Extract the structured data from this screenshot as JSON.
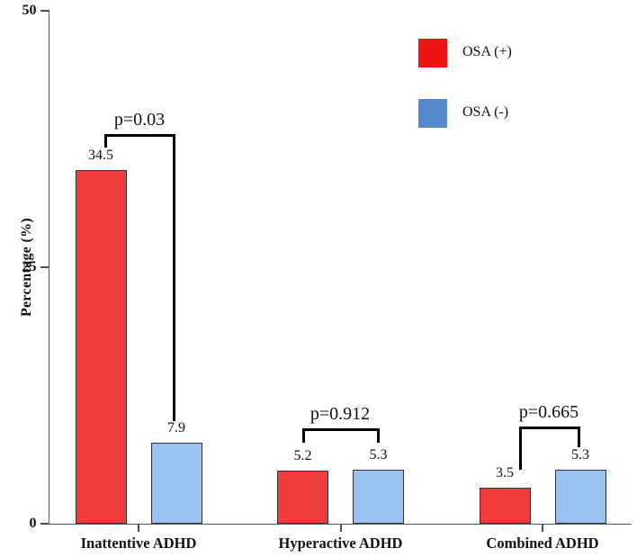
{
  "chart_data": {
    "type": "bar",
    "title": "",
    "ylabel": "Percentage (%)",
    "xlabel": "",
    "ylim": [
      0,
      50
    ],
    "yticks": [
      0,
      25,
      50
    ],
    "categories": [
      "Inattentive ADHD",
      "Hyperactive ADHD",
      "Combined ADHD"
    ],
    "series": [
      {
        "name": "OSA (+)",
        "bar_color": "#f23c3c",
        "legend_color": "#ee1515",
        "values": [
          34.5,
          5.2,
          3.5
        ]
      },
      {
        "name": "OSA (-)",
        "bar_color": "#9ac2f0",
        "legend_color": "#5689cd",
        "values": [
          7.9,
          5.3,
          5.3
        ]
      }
    ],
    "value_labels": [
      [
        "34.5",
        "5.2",
        "3.5"
      ],
      [
        "7.9",
        "5.3",
        "5.3"
      ]
    ],
    "p_values": [
      "p=0.03",
      "p=0.912",
      "p=0.665"
    ],
    "legend_position": "top-right",
    "grid": false,
    "colors": {
      "axis": "#5a5a5a",
      "bracket": "#000000",
      "bar_border": "#333333",
      "background": "#ffffff"
    }
  }
}
